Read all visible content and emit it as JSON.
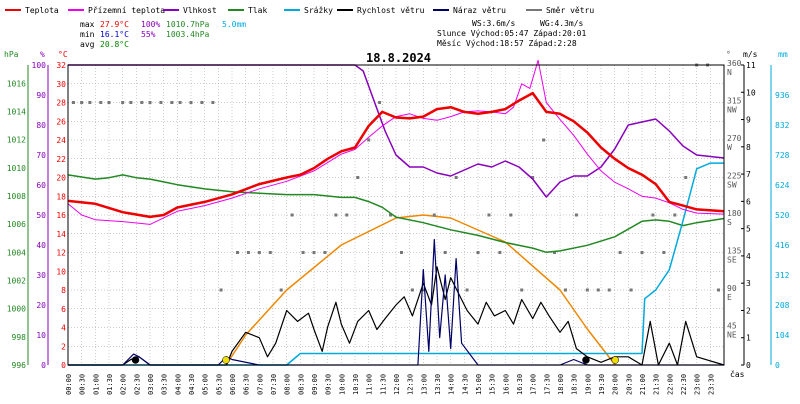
{
  "legend": [
    {
      "label": "Teplota",
      "color": "#ee0000"
    },
    {
      "label": "Přízemní teplota",
      "color": "#ee00ee"
    },
    {
      "label": "Vlhkost",
      "color": "#8800bb"
    },
    {
      "label": "Tlak",
      "color": "#228822"
    },
    {
      "label": "Srážky",
      "color": "#00aadd"
    },
    {
      "label": "Rychlost větru",
      "color": "#000000"
    },
    {
      "label": "Náraz větru",
      "color": "#000066"
    },
    {
      "label": "Směr větru",
      "color": "#777777"
    }
  ],
  "stats": {
    "max_label": "max",
    "max_temp": "27.9°C",
    "max_hum": "100%",
    "max_press": "1010.7hPa",
    "max_rain": "5.0mm",
    "min_label": "min",
    "min_temp": "16.1°C",
    "min_hum": "55%",
    "min_press": "1003.4hPa",
    "avg_label": "avg",
    "avg_temp": "20.8°C"
  },
  "wind_info": {
    "ws": "WS:3.6m/s",
    "wg": "WG:4.3m/s"
  },
  "sun_info": "Slunce Východ:05:47  Západ:20:01",
  "moon_info": "Měsíc  Východ:18:57  Západ:2:28",
  "date": "18.8.2024",
  "axis_headers": {
    "hpa": "hPa",
    "pct": "%",
    "degc": "°C",
    "deg": "°",
    "ms": "m/s",
    "mm": "mm",
    "cas": "čas"
  },
  "colors": {
    "grid": "#999999",
    "pressure_axis": "#228822",
    "hum_axis": "#8800bb",
    "temp_axis": "#ee0000",
    "rain_axis": "#00aadd",
    "sun": "#ee8800"
  },
  "chart_data": {
    "type": "line",
    "title": "18.8.2024",
    "xlabel": "čas",
    "x_ticks": [
      "00:00",
      "00:30",
      "01:00",
      "01:30",
      "02:00",
      "02:30",
      "03:00",
      "03:30",
      "04:00",
      "04:30",
      "05:00",
      "05:30",
      "06:00",
      "06:30",
      "07:00",
      "07:30",
      "08:00",
      "08:30",
      "09:00",
      "09:30",
      "10:00",
      "10:30",
      "11:00",
      "11:30",
      "12:00",
      "12:30",
      "13:00",
      "13:30",
      "14:00",
      "14:30",
      "15:00",
      "15:30",
      "16:00",
      "16:30",
      "17:00",
      "17:30",
      "18:00",
      "18:30",
      "19:00",
      "19:30",
      "20:00",
      "20:30",
      "21:00",
      "21:30",
      "22:00",
      "22:30",
      "23:00",
      "23:30"
    ],
    "axes": {
      "pressure_hpa": {
        "ticks": [
          996,
          998,
          1000,
          1002,
          1004,
          1006,
          1008,
          1010,
          1012,
          1014,
          1016
        ],
        "range": [
          996,
          1017.3
        ]
      },
      "humidity_pct": {
        "ticks": [
          0,
          10,
          20,
          30,
          40,
          50,
          60,
          70,
          80,
          90,
          100
        ],
        "range": [
          0,
          100
        ]
      },
      "temperature_c": {
        "ticks": [
          0,
          2,
          4,
          6,
          8,
          10,
          12,
          14,
          16,
          18,
          20,
          22,
          24,
          26,
          28,
          30,
          32
        ],
        "range": [
          0,
          32
        ]
      },
      "wind_dir_deg": {
        "ticks": [
          "45 NE",
          "90 E",
          "135 SE",
          "180 S",
          "225 SW",
          "270 W",
          "315 NW",
          "360 N"
        ],
        "range": [
          0,
          360
        ]
      },
      "wind_ms": {
        "ticks": [
          0,
          1,
          2,
          3,
          4,
          5,
          6,
          7,
          8,
          9,
          10,
          11
        ],
        "range": [
          0,
          11
        ]
      },
      "rain_mm": {
        "ticks": [
          0,
          104,
          208,
          312,
          416,
          520,
          624,
          728,
          832,
          936
        ],
        "range": [
          0,
          1040
        ]
      }
    },
    "series": [
      {
        "name": "Teplota",
        "axis": "temperature_c",
        "color": "#ee0000",
        "x": [
          0,
          1,
          2,
          3,
          3.5,
          4,
          5,
          6,
          7,
          8,
          8.5,
          9,
          9.5,
          10,
          10.5,
          11,
          11.5,
          12,
          12.5,
          13,
          13.5,
          14,
          14.5,
          15,
          15.5,
          16,
          16.5,
          17,
          17.5,
          18,
          18.5,
          19,
          19.5,
          20,
          20.5,
          21,
          21.5,
          22,
          22.5,
          23,
          24
        ],
        "y": [
          17.5,
          17.2,
          16.3,
          15.8,
          16,
          16.8,
          17.4,
          18.2,
          19.3,
          20,
          20.3,
          21,
          22,
          22.8,
          23.2,
          25.5,
          27,
          26.4,
          26.3,
          26.5,
          27.3,
          27.5,
          27,
          26.8,
          27,
          27.3,
          28.2,
          29,
          27,
          26.8,
          26,
          24.8,
          23.2,
          22,
          21,
          20.3,
          19.3,
          17.4,
          17,
          16.6,
          16.4
        ]
      },
      {
        "name": "Přízemní teplota",
        "axis": "temperature_c",
        "color": "#ee00ee",
        "x": [
          0,
          0.5,
          1,
          2,
          3,
          4,
          5,
          6,
          7,
          8,
          9,
          10,
          10.5,
          11,
          11.5,
          12,
          12.5,
          13,
          13.5,
          14,
          14.5,
          15,
          15.5,
          16,
          16.3,
          16.6,
          16.9,
          17.2,
          17.5,
          18,
          18.5,
          19,
          19.5,
          20,
          20.5,
          21,
          21.5,
          22,
          22.5,
          23,
          24
        ],
        "y": [
          17.2,
          16,
          15.5,
          15.3,
          15,
          16.4,
          17,
          17.8,
          18.8,
          19.6,
          20.7,
          22.5,
          23,
          24.3,
          25.5,
          26.5,
          26.8,
          26.3,
          26.1,
          26.5,
          27,
          27.1,
          27,
          26.8,
          27.5,
          30,
          29.5,
          32.5,
          28,
          26.2,
          24.5,
          22.5,
          20.7,
          19.5,
          18.8,
          18,
          17.8,
          17.3,
          16.6,
          16.2,
          16.1
        ]
      },
      {
        "name": "Vlhkost",
        "axis": "humidity_pct",
        "color": "#8800bb",
        "x": [
          0,
          6,
          8,
          10,
          10.5,
          10.8,
          11.2,
          11.6,
          12,
          12.5,
          13,
          13.5,
          14,
          14.5,
          15,
          15.5,
          16,
          16.5,
          17,
          17.5,
          18,
          18.5,
          19,
          19.5,
          20,
          20.5,
          21,
          21.5,
          22,
          22.5,
          23,
          24
        ],
        "y": [
          100,
          100,
          100,
          100,
          100,
          98,
          88,
          78,
          70,
          66,
          66,
          64,
          63,
          65,
          67,
          66,
          68,
          66,
          62,
          56,
          61,
          63,
          63,
          66,
          72,
          80,
          81,
          82,
          78,
          73,
          70,
          69
        ]
      },
      {
        "name": "Tlak",
        "axis": "pressure_hpa",
        "color": "#228822",
        "x": [
          0,
          1,
          1.5,
          2,
          2.5,
          3,
          3.5,
          4,
          5,
          6,
          7,
          8,
          9,
          10,
          10.5,
          11,
          11.5,
          12,
          13,
          14,
          15,
          16,
          17,
          17.5,
          18,
          19,
          20,
          21,
          21.5,
          22,
          22.5,
          23,
          24
        ],
        "y": [
          1009.5,
          1009.2,
          1009.3,
          1009.5,
          1009.3,
          1009.2,
          1009,
          1008.8,
          1008.5,
          1008.3,
          1008.2,
          1008.1,
          1008.1,
          1007.9,
          1007.9,
          1007.6,
          1007.2,
          1006.5,
          1006.1,
          1005.6,
          1005.2,
          1004.7,
          1004.3,
          1004,
          1004.1,
          1004.5,
          1005.1,
          1006.2,
          1006.3,
          1006.2,
          1005.9,
          1006.1,
          1006.4
        ]
      },
      {
        "name": "Srážky",
        "axis": "rain_mm",
        "color": "#00aadd",
        "x": [
          0,
          8,
          8.5,
          12,
          18,
          19,
          21,
          21.1,
          21.5,
          22,
          22.5,
          23,
          23.5,
          24
        ],
        "y": [
          0,
          0,
          40,
          40,
          40,
          40,
          40,
          230,
          260,
          330,
          500,
          680,
          700,
          700
        ]
      },
      {
        "name": "Rychlost větru",
        "axis": "wind_ms",
        "color": "#000000",
        "x": [
          0,
          2,
          2.3,
          2.6,
          3,
          5,
          5.8,
          6,
          6.5,
          7,
          7.3,
          7.6,
          8,
          8.4,
          8.8,
          9,
          9.3,
          9.5,
          9.8,
          10,
          10.3,
          10.6,
          11,
          11.3,
          11.6,
          12,
          12.3,
          12.6,
          13,
          13.3,
          13.5,
          13.8,
          14,
          14.3,
          14.6,
          15,
          15.3,
          15.6,
          16,
          16.3,
          16.6,
          17,
          17.3,
          17.6,
          18,
          18.3,
          18.6,
          19,
          19.5,
          20,
          20.5,
          21,
          21.3,
          21.6,
          22,
          22.3,
          22.6,
          23,
          24
        ],
        "y": [
          0,
          0,
          0.2,
          0.3,
          0,
          0,
          0,
          0.5,
          1.2,
          1,
          0.3,
          0.8,
          2,
          1.6,
          1.9,
          1.3,
          0.5,
          1.4,
          2.3,
          1.5,
          0.8,
          1.6,
          2,
          1.3,
          1.7,
          2.2,
          2.5,
          1.8,
          3,
          2.2,
          3.6,
          2.4,
          3.2,
          2.6,
          2,
          1.5,
          2.3,
          1.8,
          2,
          1.5,
          2.4,
          1.7,
          2.3,
          1.8,
          1.2,
          1.6,
          0.6,
          0.3,
          0.1,
          0.3,
          0.3,
          0,
          1.6,
          0,
          0.8,
          0,
          1.6,
          0.3,
          0
        ]
      },
      {
        "name": "Náraz větru",
        "axis": "wind_ms",
        "color": "#000066",
        "x": [
          0,
          2,
          2.4,
          2.6,
          3,
          5.5,
          5.8,
          6,
          7,
          8,
          9,
          10,
          11,
          12,
          12.8,
          13,
          13.2,
          13.4,
          13.6,
          13.8,
          14,
          14.2,
          14.4,
          15,
          16,
          17,
          17.5,
          18,
          18.5,
          19,
          24
        ],
        "y": [
          0,
          0,
          0.4,
          0.3,
          0,
          0,
          0.3,
          0.2,
          0,
          0,
          0,
          0,
          0,
          0,
          0,
          3.5,
          0.5,
          4.6,
          1,
          3.3,
          0.6,
          3.9,
          0.8,
          0,
          0,
          0,
          0,
          0,
          0.2,
          0,
          0
        ]
      },
      {
        "name": "Směr větru",
        "axis": "wind_dir_deg",
        "color": "#777777",
        "x": [
          0.2,
          0.5,
          0.8,
          1.2,
          1.5,
          2,
          2.3,
          2.7,
          3,
          3.4,
          3.8,
          4.1,
          4.5,
          4.9,
          5.3,
          5.6,
          6.2,
          6.6,
          7,
          7.4,
          7.8,
          8.2,
          8.6,
          9,
          9.4,
          9.8,
          10.2,
          10.6,
          11,
          11.4,
          11.8,
          12.2,
          12.6,
          13,
          13.4,
          13.8,
          14.2,
          14.6,
          15,
          15.4,
          15.8,
          16.2,
          16.6,
          17,
          17.4,
          17.8,
          18.2,
          18.6,
          19,
          19.4,
          19.8,
          20.2,
          20.6,
          21,
          21.4,
          21.8,
          22.2,
          22.6,
          23,
          23.4,
          23.8
        ],
        "y": [
          315,
          315,
          315,
          315,
          315,
          315,
          315,
          315,
          315,
          315,
          315,
          315,
          315,
          315,
          315,
          90,
          135,
          135,
          135,
          135,
          90,
          180,
          135,
          135,
          135,
          180,
          180,
          225,
          270,
          315,
          180,
          135,
          90,
          90,
          180,
          135,
          225,
          90,
          135,
          180,
          135,
          180,
          90,
          225,
          270,
          135,
          90,
          180,
          90,
          90,
          90,
          135,
          90,
          135,
          180,
          135,
          180,
          225,
          360,
          360,
          90
        ]
      }
    ],
    "sun_curve": {
      "name": "sun",
      "color": "#ee8800",
      "x": [
        5.78,
        6.5,
        8,
        10,
        12,
        13,
        14,
        16,
        18,
        19,
        20.02
      ],
      "y": [
        0,
        10,
        25,
        40,
        49,
        50,
        49,
        41,
        25,
        12,
        0
      ],
      "axis": "humidity_pct"
    },
    "markers": [
      {
        "type": "moonset",
        "x": 2.47,
        "color": "#000000"
      },
      {
        "type": "sunrise",
        "x": 5.78,
        "color": "#eedd00"
      },
      {
        "type": "moonrise",
        "x": 18.95,
        "color": "#000000"
      },
      {
        "type": "sunset",
        "x": 20.02,
        "color": "#eedd00"
      }
    ]
  }
}
